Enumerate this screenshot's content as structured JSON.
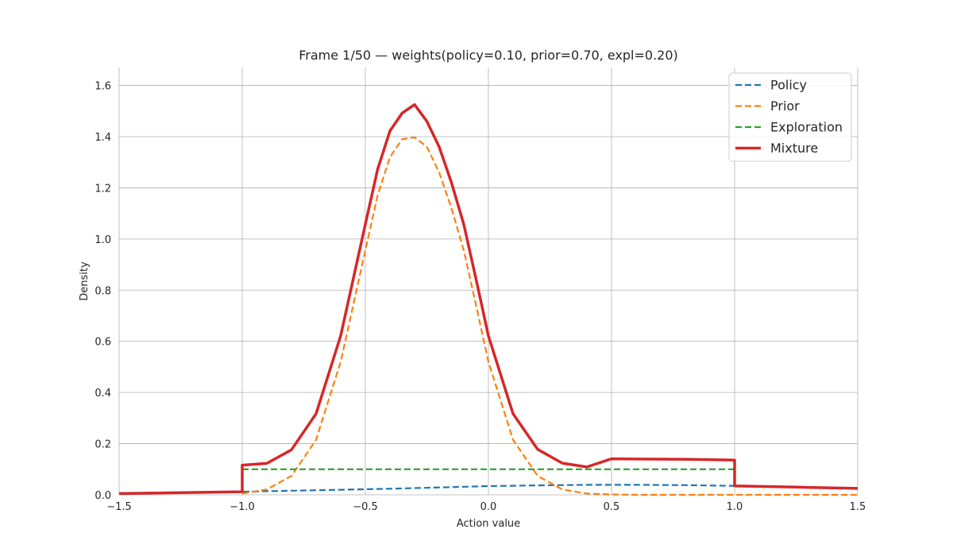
{
  "chart_data": {
    "type": "line",
    "title": "Frame 1/50 — weights(policy=0.10, prior=0.70, expl=0.20)",
    "xlabel": "Action value",
    "ylabel": "Density",
    "xlim": [
      -1.5,
      1.5
    ],
    "ylim": [
      0.0,
      1.67
    ],
    "xticks": [
      -1.5,
      -1.0,
      -0.5,
      0.0,
      0.5,
      1.0,
      1.5
    ],
    "xtick_labels": [
      "−1.5",
      "−1.0",
      "−0.5",
      "0.0",
      "0.5",
      "1.0",
      "1.5"
    ],
    "yticks": [
      0.0,
      0.2,
      0.4,
      0.6,
      0.8,
      1.0,
      1.2,
      1.4,
      1.6
    ],
    "ytick_labels": [
      "0.0",
      "0.2",
      "0.4",
      "0.6",
      "0.8",
      "1.0",
      "1.2",
      "1.4",
      "1.6"
    ],
    "grid": true,
    "legend_position": "top-right",
    "series": [
      {
        "name": "Policy",
        "color": "#1f77b4",
        "style": "dashed",
        "x": [
          -1.5,
          -1.0,
          -0.8,
          -0.6,
          -0.4,
          -0.2,
          0.0,
          0.2,
          0.4,
          0.5,
          0.6,
          0.8,
          1.0,
          1.25,
          1.5
        ],
        "y": [
          0.005,
          0.012,
          0.016,
          0.02,
          0.024,
          0.029,
          0.034,
          0.037,
          0.039,
          0.039,
          0.039,
          0.038,
          0.035,
          0.03,
          0.025
        ]
      },
      {
        "name": "Prior",
        "color": "#ff7f0e",
        "style": "dashed",
        "x": [
          -1.0,
          -0.9,
          -0.8,
          -0.7,
          -0.6,
          -0.5,
          -0.45,
          -0.4,
          -0.35,
          -0.3,
          -0.25,
          -0.2,
          -0.15,
          -0.1,
          -0.05,
          0.0,
          0.1,
          0.2,
          0.3,
          0.4,
          0.5,
          0.6,
          1.0,
          1.5
        ],
        "y": [
          0.005,
          0.021,
          0.074,
          0.215,
          0.52,
          0.955,
          1.17,
          1.32,
          1.39,
          1.397,
          1.36,
          1.26,
          1.12,
          0.955,
          0.74,
          0.52,
          0.215,
          0.074,
          0.021,
          0.005,
          0.0015,
          0.0,
          0.0,
          0.0
        ]
      },
      {
        "name": "Exploration",
        "color": "#2ca02c",
        "style": "dashed",
        "x": [
          -1.0,
          1.0
        ],
        "y": [
          0.1,
          0.1
        ]
      },
      {
        "name": "Mixture",
        "color": "#d62728",
        "style": "solid",
        "x": [
          -1.5,
          -1.0,
          -1.0,
          -0.9,
          -0.8,
          -0.7,
          -0.6,
          -0.5,
          -0.45,
          -0.4,
          -0.35,
          -0.3,
          -0.25,
          -0.2,
          -0.15,
          -0.1,
          -0.05,
          0.0,
          0.1,
          0.2,
          0.3,
          0.4,
          0.5,
          0.6,
          0.8,
          1.0,
          1.0,
          1.25,
          1.5
        ],
        "y": [
          0.005,
          0.012,
          0.116,
          0.123,
          0.176,
          0.317,
          0.622,
          1.057,
          1.272,
          1.422,
          1.492,
          1.525,
          1.46,
          1.36,
          1.22,
          1.057,
          0.842,
          0.621,
          0.317,
          0.178,
          0.124,
          0.109,
          0.141,
          0.14,
          0.139,
          0.136,
          0.035,
          0.03,
          0.025
        ]
      }
    ]
  }
}
